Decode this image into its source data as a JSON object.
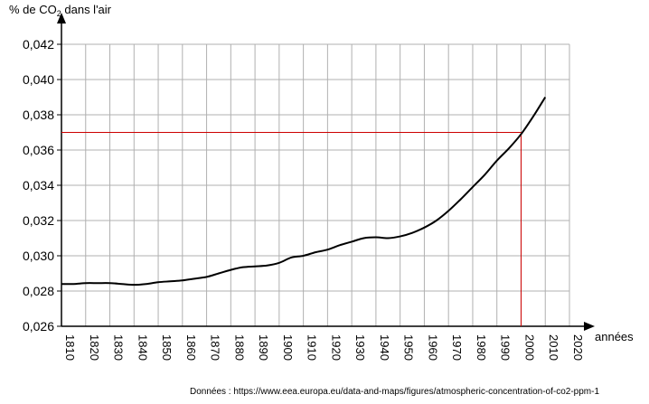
{
  "chart_data": {
    "type": "line",
    "ylabel_main": "% de CO",
    "ylabel_sub": "2",
    "ylabel_tail": " dans l'air",
    "xlabel": "années",
    "xlim": [
      1810,
      2020
    ],
    "ylim": [
      0.026,
      0.042
    ],
    "x_ticks": [
      "1810",
      "1820",
      "1830",
      "1840",
      "1850",
      "1860",
      "1870",
      "1880",
      "1890",
      "1900",
      "1910",
      "1920",
      "1930",
      "1940",
      "1950",
      "1960",
      "1970",
      "1980",
      "1990",
      "2000",
      "2010",
      "2020"
    ],
    "y_ticks": [
      "0,026",
      "0,028",
      "0,030",
      "0,032",
      "0,034",
      "0,036",
      "0,038",
      "0,040",
      "0,042"
    ],
    "grid": true,
    "series": [
      {
        "color": "#000000",
        "x": [
          1810,
          1815,
          1820,
          1825,
          1830,
          1835,
          1840,
          1845,
          1850,
          1855,
          1860,
          1865,
          1870,
          1875,
          1880,
          1885,
          1890,
          1895,
          1900,
          1905,
          1910,
          1915,
          1920,
          1925,
          1930,
          1935,
          1940,
          1945,
          1950,
          1955,
          1960,
          1965,
          1970,
          1975,
          1980,
          1985,
          1990,
          1995,
          2000,
          2005,
          2010
        ],
        "y": [
          0.0284,
          0.0284,
          0.02845,
          0.02845,
          0.02845,
          0.0284,
          0.02835,
          0.0284,
          0.0285,
          0.02855,
          0.0286,
          0.0287,
          0.0288,
          0.029,
          0.0292,
          0.02935,
          0.0294,
          0.02945,
          0.0296,
          0.0299,
          0.03,
          0.0302,
          0.03035,
          0.0306,
          0.0308,
          0.031,
          0.03105,
          0.031,
          0.0311,
          0.0313,
          0.0316,
          0.032,
          0.03255,
          0.0332,
          0.0339,
          0.0346,
          0.0354,
          0.0361,
          0.0369,
          0.0379,
          0.039
        ]
      }
    ],
    "reference": {
      "x": 2000,
      "y": 0.037,
      "color": "#cc0000"
    }
  },
  "source": "Données : https://www.eea.europa.eu/data-and-maps/figures/atmospheric-concentration-of-co2-ppm-1"
}
